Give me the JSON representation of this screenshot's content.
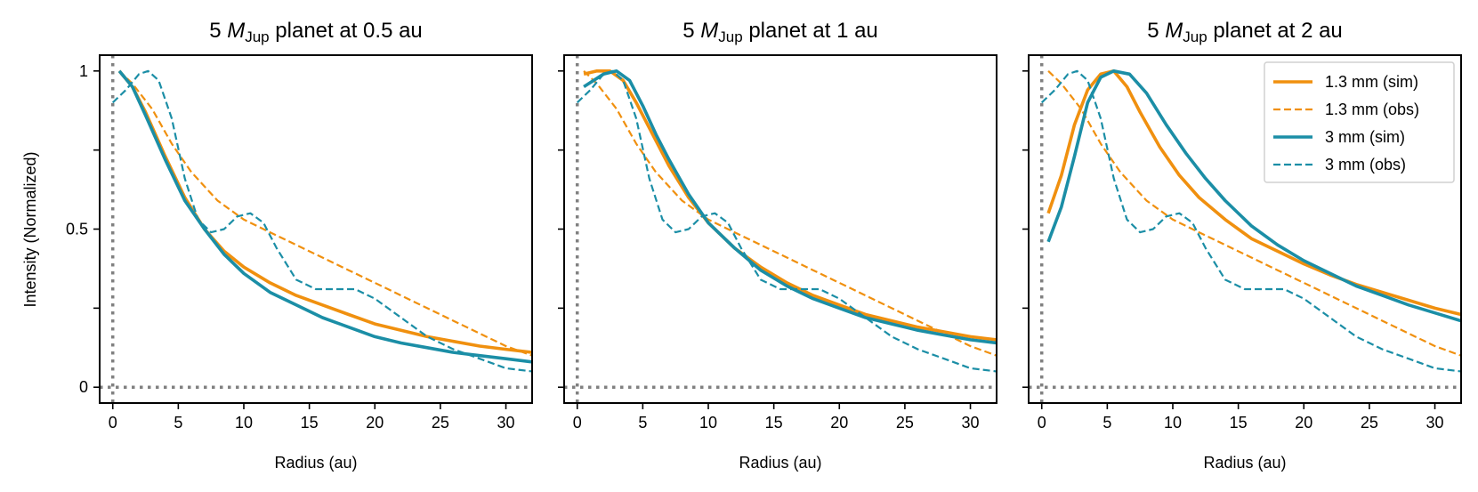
{
  "colors": {
    "orange": "#f0900f",
    "teal": "#1b8ea6",
    "ref_line": "#808080",
    "axis": "#000000"
  },
  "chart_data": [
    {
      "type": "line",
      "title": {
        "prefix": "5 ",
        "symbol": "M",
        "subscript": "Jup",
        "suffix": " planet at 0.5 au"
      },
      "xlabel": "Radius (au)",
      "ylabel": "Intensity (Normalized)",
      "xlim": [
        -1,
        32
      ],
      "ylim": [
        -0.05,
        1.05
      ],
      "xticks": [
        0,
        5,
        10,
        15,
        20,
        25,
        30
      ],
      "yticks": [
        0,
        0.25,
        0.5,
        0.75,
        1
      ],
      "ytick_labels": [
        "0",
        "",
        "0.5",
        "",
        "1"
      ],
      "show_ylabel": true,
      "series": [
        {
          "name": "1.3 mm (sim)",
          "color": "orange",
          "style": "solid",
          "x": [
            0.5,
            1.5,
            2.5,
            4,
            5.5,
            7,
            8.5,
            10,
            12,
            14,
            16,
            18,
            20,
            22,
            24,
            26,
            28,
            30,
            32
          ],
          "y": [
            1.0,
            0.95,
            0.87,
            0.73,
            0.6,
            0.5,
            0.43,
            0.38,
            0.33,
            0.29,
            0.26,
            0.23,
            0.2,
            0.18,
            0.16,
            0.145,
            0.13,
            0.12,
            0.11
          ]
        },
        {
          "name": "1.3 mm (obs)",
          "color": "orange",
          "style": "dashed",
          "x": [
            0.5,
            1.5,
            3,
            4.5,
            6,
            8,
            10,
            12,
            14,
            16,
            18,
            20,
            22,
            24,
            26,
            28,
            30,
            32
          ],
          "y": [
            1.0,
            0.96,
            0.88,
            0.77,
            0.68,
            0.59,
            0.53,
            0.49,
            0.45,
            0.41,
            0.37,
            0.33,
            0.29,
            0.25,
            0.21,
            0.17,
            0.13,
            0.1
          ]
        },
        {
          "name": "3 mm (sim)",
          "color": "teal",
          "style": "solid",
          "x": [
            0.5,
            1.5,
            2.5,
            4,
            5.5,
            7,
            8.5,
            10,
            12,
            14,
            16,
            18,
            20,
            22,
            24,
            26,
            28,
            30,
            32
          ],
          "y": [
            1.0,
            0.95,
            0.86,
            0.72,
            0.59,
            0.5,
            0.42,
            0.36,
            0.3,
            0.26,
            0.22,
            0.19,
            0.16,
            0.14,
            0.125,
            0.11,
            0.1,
            0.09,
            0.08
          ]
        },
        {
          "name": "3 mm (obs)",
          "color": "teal",
          "style": "dashed",
          "x": [
            0,
            1,
            2,
            2.7,
            3.5,
            4.5,
            5.5,
            6.5,
            7.5,
            8.5,
            9.5,
            10.5,
            11.5,
            12.5,
            14,
            15.5,
            17,
            18.5,
            20,
            22,
            24,
            26,
            28,
            30,
            32
          ],
          "y": [
            0.9,
            0.94,
            0.99,
            1.0,
            0.97,
            0.85,
            0.66,
            0.53,
            0.49,
            0.5,
            0.54,
            0.55,
            0.52,
            0.44,
            0.34,
            0.31,
            0.31,
            0.31,
            0.28,
            0.22,
            0.16,
            0.12,
            0.09,
            0.06,
            0.05
          ]
        }
      ]
    },
    {
      "type": "line",
      "title": {
        "prefix": "5 ",
        "symbol": "M",
        "subscript": "Jup",
        "suffix": " planet at 1 au"
      },
      "xlabel": "Radius (au)",
      "ylabel": "",
      "xlim": [
        -1,
        32
      ],
      "ylim": [
        -0.05,
        1.05
      ],
      "xticks": [
        0,
        5,
        10,
        15,
        20,
        25,
        30
      ],
      "yticks": [
        0,
        0.25,
        0.5,
        0.75,
        1
      ],
      "ytick_labels": [
        "",
        "",
        "",
        "",
        ""
      ],
      "show_ylabel": false,
      "series": [
        {
          "name": "1.3 mm (sim)",
          "color": "orange",
          "style": "solid",
          "x": [
            0.5,
            1.5,
            2.5,
            3.5,
            4.5,
            5.5,
            7,
            8.5,
            10,
            12,
            14,
            16,
            18,
            20,
            22,
            24,
            26,
            28,
            30,
            32
          ],
          "y": [
            0.99,
            1.0,
            1.0,
            0.97,
            0.9,
            0.82,
            0.7,
            0.6,
            0.52,
            0.44,
            0.38,
            0.33,
            0.29,
            0.26,
            0.23,
            0.21,
            0.19,
            0.175,
            0.16,
            0.15
          ]
        },
        {
          "name": "1.3 mm (obs)",
          "color": "orange",
          "style": "dashed",
          "x": [
            0.5,
            1.5,
            3,
            4.5,
            6,
            8,
            10,
            12,
            14,
            16,
            18,
            20,
            22,
            24,
            26,
            28,
            30,
            32
          ],
          "y": [
            1.0,
            0.96,
            0.88,
            0.77,
            0.68,
            0.59,
            0.53,
            0.49,
            0.45,
            0.41,
            0.37,
            0.33,
            0.29,
            0.25,
            0.21,
            0.17,
            0.13,
            0.1
          ]
        },
        {
          "name": "3 mm (sim)",
          "color": "teal",
          "style": "solid",
          "x": [
            0.5,
            2,
            3,
            4,
            5,
            6,
            7,
            8.5,
            10,
            12,
            14,
            16,
            18,
            20,
            22,
            24,
            26,
            28,
            30,
            32
          ],
          "y": [
            0.95,
            0.99,
            1.0,
            0.97,
            0.89,
            0.8,
            0.72,
            0.61,
            0.52,
            0.44,
            0.37,
            0.32,
            0.28,
            0.25,
            0.22,
            0.2,
            0.18,
            0.165,
            0.15,
            0.14
          ]
        },
        {
          "name": "3 mm (obs)",
          "color": "teal",
          "style": "dashed",
          "x": [
            0,
            1,
            2,
            2.7,
            3.5,
            4.5,
            5.5,
            6.5,
            7.5,
            8.5,
            9.5,
            10.5,
            11.5,
            12.5,
            14,
            15.5,
            17,
            18.5,
            20,
            22,
            24,
            26,
            28,
            30,
            32
          ],
          "y": [
            0.9,
            0.94,
            0.99,
            1.0,
            0.97,
            0.85,
            0.66,
            0.53,
            0.49,
            0.5,
            0.54,
            0.55,
            0.52,
            0.44,
            0.34,
            0.31,
            0.31,
            0.31,
            0.28,
            0.22,
            0.16,
            0.12,
            0.09,
            0.06,
            0.05
          ]
        }
      ]
    },
    {
      "type": "line",
      "title": {
        "prefix": "5 ",
        "symbol": "M",
        "subscript": "Jup",
        "suffix": " planet at 2 au"
      },
      "xlabel": "Radius (au)",
      "ylabel": "",
      "xlim": [
        -1,
        32
      ],
      "ylim": [
        -0.05,
        1.05
      ],
      "xticks": [
        0,
        5,
        10,
        15,
        20,
        25,
        30
      ],
      "yticks": [
        0,
        0.25,
        0.5,
        0.75,
        1
      ],
      "ytick_labels": [
        "",
        "",
        "",
        "",
        ""
      ],
      "show_ylabel": false,
      "series": [
        {
          "name": "1.3 mm (sim)",
          "color": "orange",
          "style": "solid",
          "x": [
            0.5,
            1.5,
            2.5,
            3.5,
            4.5,
            5.5,
            6.5,
            7.5,
            9,
            10.5,
            12,
            14,
            16,
            18,
            20,
            22,
            24,
            26,
            28,
            30,
            32
          ],
          "y": [
            0.55,
            0.67,
            0.83,
            0.94,
            0.99,
            1.0,
            0.95,
            0.87,
            0.76,
            0.67,
            0.6,
            0.53,
            0.47,
            0.43,
            0.39,
            0.355,
            0.325,
            0.3,
            0.275,
            0.25,
            0.23
          ]
        },
        {
          "name": "1.3 mm (obs)",
          "color": "orange",
          "style": "dashed",
          "x": [
            0.5,
            1.5,
            3,
            4.5,
            6,
            8,
            10,
            12,
            14,
            16,
            18,
            20,
            22,
            24,
            26,
            28,
            30,
            32
          ],
          "y": [
            1.0,
            0.96,
            0.88,
            0.77,
            0.68,
            0.59,
            0.53,
            0.49,
            0.45,
            0.41,
            0.37,
            0.33,
            0.29,
            0.25,
            0.21,
            0.17,
            0.13,
            0.1
          ]
        },
        {
          "name": "3 mm (sim)",
          "color": "teal",
          "style": "solid",
          "x": [
            0.5,
            1.5,
            2.5,
            3.5,
            4.5,
            5.5,
            6.7,
            8,
            9.5,
            11,
            12.5,
            14,
            16,
            18,
            20,
            22,
            24,
            26,
            28,
            30,
            32
          ],
          "y": [
            0.46,
            0.57,
            0.73,
            0.9,
            0.98,
            1.0,
            0.99,
            0.93,
            0.83,
            0.74,
            0.66,
            0.59,
            0.51,
            0.45,
            0.4,
            0.36,
            0.32,
            0.29,
            0.26,
            0.235,
            0.21
          ]
        },
        {
          "name": "3 mm (obs)",
          "color": "teal",
          "style": "dashed",
          "x": [
            0,
            1,
            2,
            2.7,
            3.5,
            4.5,
            5.5,
            6.5,
            7.5,
            8.5,
            9.5,
            10.5,
            11.5,
            12.5,
            14,
            15.5,
            17,
            18.5,
            20,
            22,
            24,
            26,
            28,
            30,
            32
          ],
          "y": [
            0.9,
            0.94,
            0.99,
            1.0,
            0.97,
            0.85,
            0.66,
            0.53,
            0.49,
            0.5,
            0.54,
            0.55,
            0.52,
            0.44,
            0.34,
            0.31,
            0.31,
            0.31,
            0.28,
            0.22,
            0.16,
            0.12,
            0.09,
            0.06,
            0.05
          ]
        }
      ],
      "legend": {
        "position": "top-right",
        "entries": [
          {
            "label": "1.3 mm (sim)",
            "color": "orange",
            "style": "solid"
          },
          {
            "label": "1.3 mm (obs)",
            "color": "orange",
            "style": "dashed"
          },
          {
            "label": "3 mm (sim)",
            "color": "teal",
            "style": "solid"
          },
          {
            "label": "3 mm (obs)",
            "color": "teal",
            "style": "dashed"
          }
        ]
      }
    }
  ]
}
